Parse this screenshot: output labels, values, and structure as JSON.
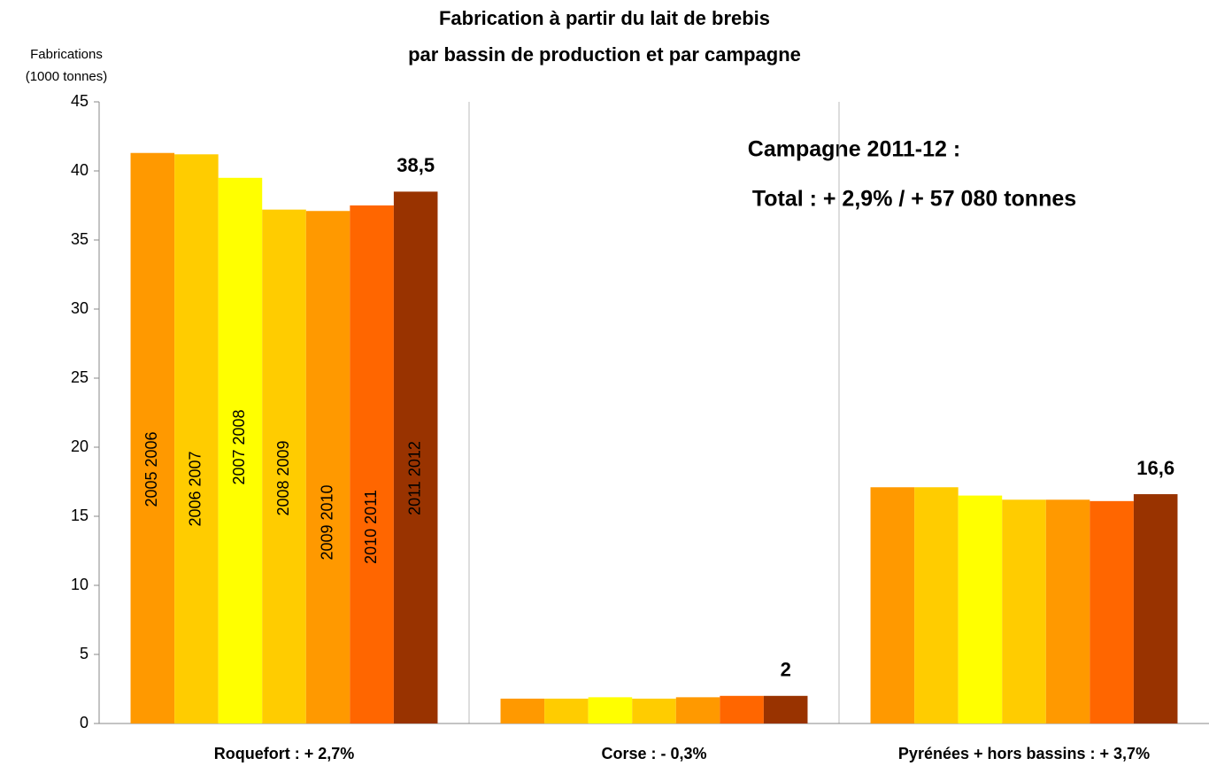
{
  "chart_data": {
    "type": "bar",
    "title": [
      "Fabrication à partir du lait de brebis",
      "par bassin de production et par campagne"
    ],
    "y_label": [
      "Fabrications",
      "(1000 tonnes)"
    ],
    "annotations": [
      "Campagne 2011-12 :",
      "Total : + 2,9% / + 57 080 tonnes"
    ],
    "categories": [
      "Roquefort : + 2,7%",
      "Corse : - 0,3%",
      "Pyrénées + hors bassins : + 3,7%"
    ],
    "series": [
      {
        "name": "2005 2006",
        "color": "#ff9900",
        "values": [
          41.3,
          1.8,
          17.1
        ]
      },
      {
        "name": "2006 2007",
        "color": "#ffcc00",
        "values": [
          41.2,
          1.8,
          17.1
        ]
      },
      {
        "name": "2007 2008",
        "color": "#ffff00",
        "values": [
          39.5,
          1.9,
          16.5
        ]
      },
      {
        "name": "2008 2009",
        "color": "#ffcc00",
        "values": [
          37.2,
          1.8,
          16.2
        ]
      },
      {
        "name": "2009 2010",
        "color": "#ff9900",
        "values": [
          37.1,
          1.9,
          16.2
        ]
      },
      {
        "name": "2010 2011",
        "color": "#ff6600",
        "values": [
          37.5,
          2.0,
          16.1
        ]
      },
      {
        "name": "2011 2012",
        "color": "#993300",
        "values": [
          38.5,
          2.0,
          16.6
        ],
        "value_labels": [
          "38,5",
          "2",
          "16,6"
        ]
      }
    ],
    "ylim": [
      0,
      45
    ],
    "yticks": [
      0,
      5,
      10,
      15,
      20,
      25,
      30,
      35,
      40,
      45
    ],
    "grid": "vertical"
  }
}
